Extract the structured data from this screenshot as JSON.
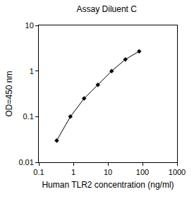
{
  "chart_data": {
    "type": "line",
    "title": "Assay Diluent C",
    "x_label": "Human TLR2 concentration (ng/ml)",
    "y_label": "OD=450 nm",
    "x": [
      0.33,
      0.82,
      2.05,
      5.12,
      12.8,
      32,
      80
    ],
    "values": [
      0.03,
      0.1,
      0.25,
      0.5,
      1.0,
      1.8,
      2.7
    ],
    "xlim": [
      0.1,
      1000
    ],
    "ylim": [
      0.01,
      10
    ],
    "xticks": [
      0.1,
      1,
      10,
      100,
      1000
    ],
    "yticks": [
      0.01,
      0.1,
      1,
      10
    ],
    "log": true,
    "grid": false,
    "color": "#000000",
    "marker": "diamond",
    "line_style": "solid"
  }
}
